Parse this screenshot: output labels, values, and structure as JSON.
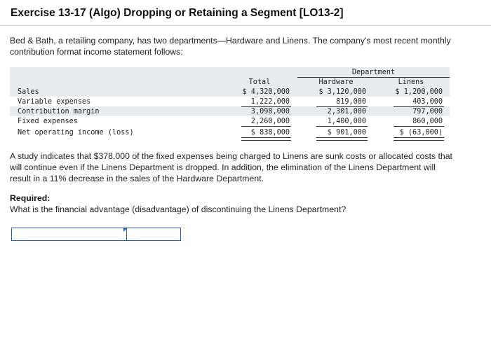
{
  "title": "Exercise 13-17 (Algo) Dropping or Retaining a Segment [LO13-2]",
  "intro": "Bed & Bath, a retailing company, has two departments—Hardware and Linens. The company's most recent monthly contribution format income statement follows:",
  "statement": {
    "department_header": "Department",
    "columns": [
      "Total",
      "Hardware",
      "Linens"
    ],
    "rows": [
      {
        "label": "Sales",
        "total": "$ 4,320,000",
        "hardware": "$ 3,120,000",
        "linens": "$ 1,200,000"
      },
      {
        "label": "Variable expenses",
        "total": "1,222,000",
        "hardware": "819,000",
        "linens": "403,000"
      },
      {
        "label": "Contribution margin",
        "total": "3,098,000",
        "hardware": "2,301,000",
        "linens": "797,000"
      },
      {
        "label": "Fixed expenses",
        "total": "2,260,000",
        "hardware": "1,400,000",
        "linens": "860,000"
      },
      {
        "label": "Net operating income (loss)",
        "total": "$ 838,000",
        "hardware": "$ 901,000",
        "linens": "$ (63,000)"
      }
    ]
  },
  "study": "A study indicates that $378,000 of the fixed expenses being charged to Linens are sunk costs or allocated costs that will continue even if the Linens Department is dropped. In addition, the elimination of the Linens Department will result in a 11% decrease in the sales of the Hardware Department.",
  "required_label": "Required:",
  "required_question": "What is the financial advantage (disadvantage) of discontinuing the Linens Department?",
  "answer": {
    "label_value": "",
    "amount_value": ""
  }
}
